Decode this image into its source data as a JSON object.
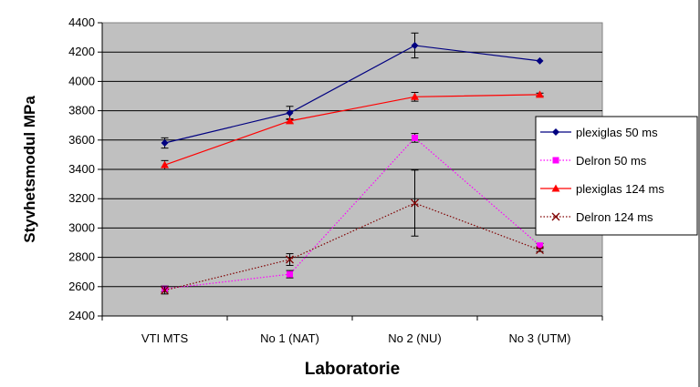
{
  "chart_data": {
    "type": "line",
    "title": "",
    "xlabel": "Laboratorie",
    "ylabel": "Styvhetsmodul MPa",
    "categories": [
      "VTI MTS",
      "No 1 (NAT)",
      "No 2 (NU)",
      "No 3 (UTM)"
    ],
    "ylim": [
      2400,
      4400
    ],
    "yticks": [
      2400,
      2600,
      2800,
      3000,
      3200,
      3400,
      3600,
      3800,
      4000,
      4200,
      4400
    ],
    "grid": true,
    "legend_position": "right",
    "plot_background": "#c0c0c0",
    "series": [
      {
        "name": "plexiglas 50 ms",
        "values": [
          3580,
          3785,
          4245,
          4140
        ],
        "errors": [
          35,
          45,
          85,
          0
        ],
        "color": "#000080",
        "line_style": "solid",
        "marker": "diamond"
      },
      {
        "name": "Delron 50 ms",
        "values": [
          2585,
          2685,
          3615,
          2880
        ],
        "errors": [
          20,
          25,
          30,
          15
        ],
        "color": "#ff00ff",
        "line_style": "dotted",
        "marker": "square"
      },
      {
        "name": "plexiglas 124 ms",
        "values": [
          3430,
          3730,
          3895,
          3910
        ],
        "errors": [
          30,
          15,
          30,
          10
        ],
        "color": "#ff0000",
        "line_style": "solid",
        "marker": "triangle"
      },
      {
        "name": "Delron 124 ms",
        "values": [
          2575,
          2785,
          3170,
          2850
        ],
        "errors": [
          25,
          40,
          225,
          10
        ],
        "color": "#800000",
        "line_style": "dotted",
        "marker": "x"
      }
    ]
  }
}
